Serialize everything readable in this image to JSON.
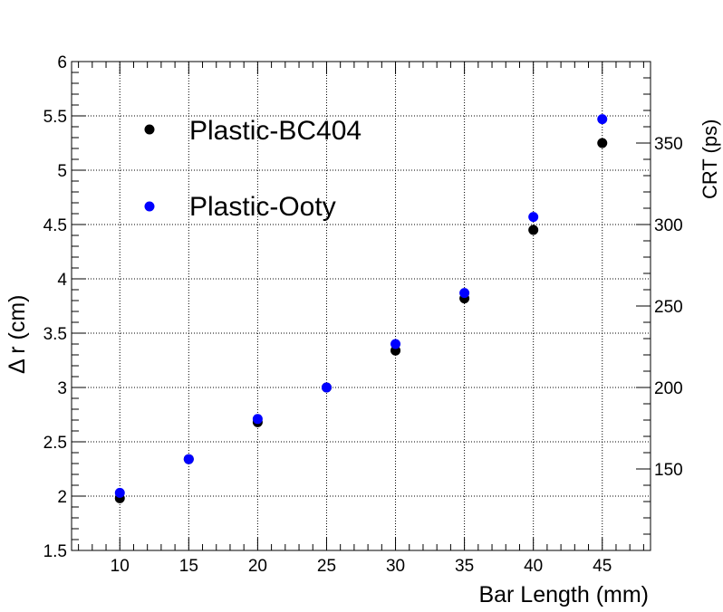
{
  "chart_data": {
    "type": "scatter",
    "xlabel": "Bar Length (mm)",
    "ylabel": "Δ r (cm)",
    "y2label": "CRT (ps)",
    "xlim": [
      6.5,
      48.5
    ],
    "ylim": [
      1.5,
      6
    ],
    "y2lim": [
      100,
      400
    ],
    "xticks": [
      "10",
      "15",
      "20",
      "25",
      "30",
      "35",
      "40",
      "45"
    ],
    "yticks": [
      "1.5",
      "2",
      "2.5",
      "3",
      "3.5",
      "4",
      "4.5",
      "5",
      "5.5",
      "6"
    ],
    "y2ticks": [
      "150",
      "200",
      "250",
      "300",
      "350"
    ],
    "grid": true,
    "legend_position": "top-left",
    "series": [
      {
        "name": "Plastic-BC404",
        "color": "#000000",
        "x": [
          10,
          15,
          20,
          25,
          30,
          35,
          40,
          45
        ],
        "y": [
          1.98,
          2.34,
          2.68,
          3.0,
          3.34,
          3.82,
          4.45,
          5.25
        ]
      },
      {
        "name": "Plastic-Ooty",
        "color": "#0000ff",
        "x": [
          10,
          15,
          20,
          25,
          30,
          35,
          40,
          45
        ],
        "y": [
          2.03,
          2.34,
          2.71,
          3.0,
          3.4,
          3.87,
          4.57,
          5.47
        ]
      }
    ]
  }
}
